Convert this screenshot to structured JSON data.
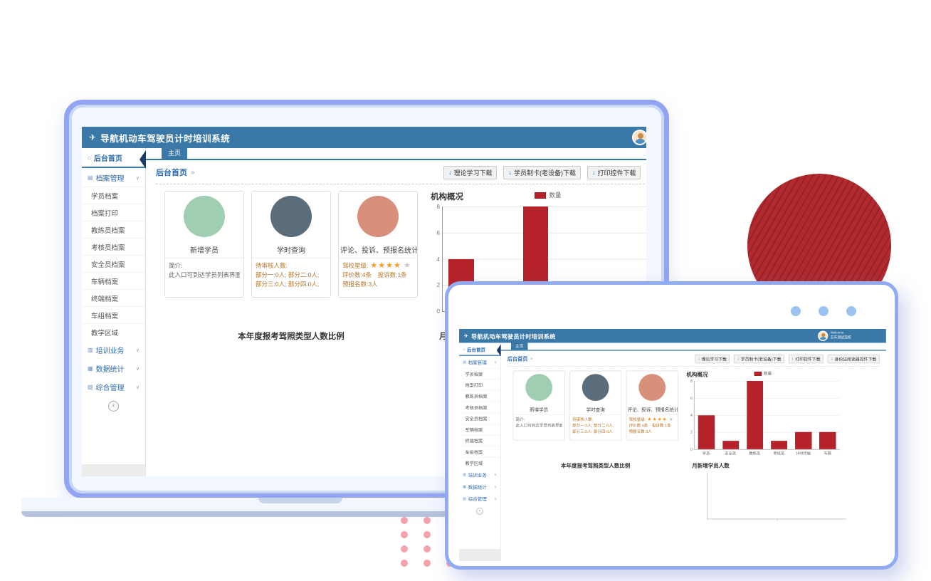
{
  "app": {
    "title": "导航机动车驾驶员计时培训系统",
    "header": {
      "welcome": "Welcome",
      "org_name": "实车测试驾校"
    },
    "tab": "主页",
    "breadcrumb": {
      "label": "后台首页",
      "sep": "»"
    },
    "download_buttons": [
      "理论学习下载",
      "学员制卡(老设备)下载",
      "打印控件下载",
      "身份证阅读器控件下载"
    ],
    "sidebar": {
      "home": "后台首页",
      "groups": [
        "档案管理",
        "培训业务",
        "数据统计",
        "综合管理"
      ],
      "archive_subs": [
        "学员档案",
        "档案打印",
        "教练员档案",
        "考核员档案",
        "安全员档案",
        "车辆档案",
        "终端档案",
        "车组档案",
        "教学区域"
      ],
      "collapse_glyph": "‹"
    },
    "cards": [
      {
        "title": "新增学员",
        "color": "#9fceb2",
        "lines": [
          "简介:",
          "此入口可到达学员列表界面，开始新增学员。"
        ]
      },
      {
        "title": "学时查询",
        "color": "#5b6d7a",
        "lines": [
          "待审核人数:",
          "部分一:0人; 部分二:0人;",
          "部分三:0人; 部分四:0人;"
        ]
      },
      {
        "title": "评论、投诉、预报名统计",
        "color": "#d8907b",
        "star_label": "驾校星级:",
        "stars_filled": "★★★★",
        "stars_empty": "★",
        "lines": [
          "评价数:4条　投诉数:1条",
          "预报名数:3人"
        ]
      }
    ],
    "section_titles": {
      "pie": "本年度报考驾照类型人数比例",
      "line": "月新增学员人数"
    }
  },
  "chart_data": [
    {
      "type": "bar",
      "title": "机构概况",
      "legend": "数量",
      "categories": [
        "学员",
        "安全员",
        "教练员",
        "考核员",
        "计时终端",
        "车辆"
      ],
      "values": [
        4,
        1,
        8,
        1,
        2,
        2
      ],
      "ylim": [
        0,
        8
      ],
      "yticks": [
        0,
        2,
        4,
        6,
        8
      ],
      "bar_color": "#b5222a",
      "grid": true,
      "legend_position": "top-center"
    },
    {
      "type": "line",
      "title": "月新增学员人数",
      "categories": [],
      "values": [],
      "note": "empty axes, no data plotted"
    }
  ],
  "colors": {
    "header_bar": "#3a78a8",
    "accent_blue_text": "#2b6cb0",
    "laptop_frame": "#93a4f2",
    "window_frame": "#90abf2",
    "red_circle": "#b12a2f",
    "pink_dot": "#f4a2ac",
    "window_dot": "#9cc3ef",
    "bar_red": "#b5222a",
    "star_orange": "#f59a23"
  }
}
